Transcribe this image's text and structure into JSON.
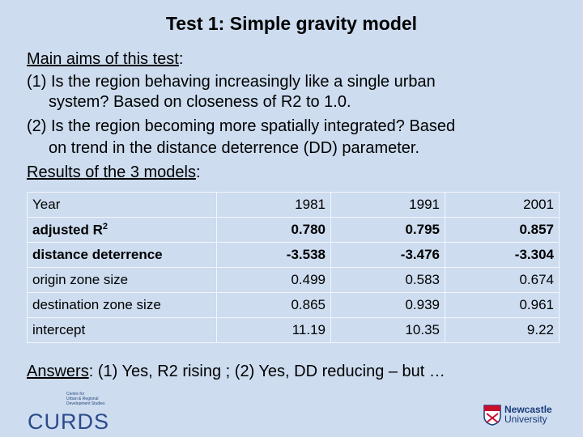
{
  "title": "Test 1: Simple gravity model",
  "aims": {
    "label": "Main aims of this test",
    "colon": ":",
    "items": [
      {
        "first": "(1) Is the region behaving increasingly like a single urban",
        "rest": "system? Based on closeness of R2 to 1.0."
      },
      {
        "first": "(2) Is the region becoming more spatially integrated? Based",
        "rest": "on trend in the distance deterrence (DD) parameter."
      }
    ]
  },
  "results": {
    "label": "Results of the 3 models",
    "colon": ":"
  },
  "table": {
    "header": [
      "Year",
      "1981",
      "1991",
      "2001"
    ],
    "rows": [
      {
        "label": "adjusted R",
        "sup": "2",
        "cells": [
          "0.780",
          "0.795",
          "0.857"
        ],
        "bold": true
      },
      {
        "label": "distance deterrence",
        "cells": [
          "-3.538",
          "-3.476",
          "-3.304"
        ],
        "bold": true
      },
      {
        "label": "origin zone size",
        "cells": [
          "0.499",
          "0.583",
          "0.674"
        ],
        "bold": false
      },
      {
        "label": "destination zone size",
        "cells": [
          "0.865",
          "0.939",
          "0.961"
        ],
        "bold": false
      },
      {
        "label": "intercept",
        "cells": [
          "11.19",
          "10.35",
          "9.22"
        ],
        "bold": false
      }
    ]
  },
  "answers": {
    "label": "Answers",
    "text": ": (1) Yes, R2 rising ; (2) Yes, DD reducing – but …"
  },
  "logos": {
    "curds_small": [
      "Centre for",
      "Urban & Regional",
      "Development Studies"
    ],
    "curds": "CURDS",
    "newcastle": [
      "Newcastle",
      "University"
    ]
  }
}
